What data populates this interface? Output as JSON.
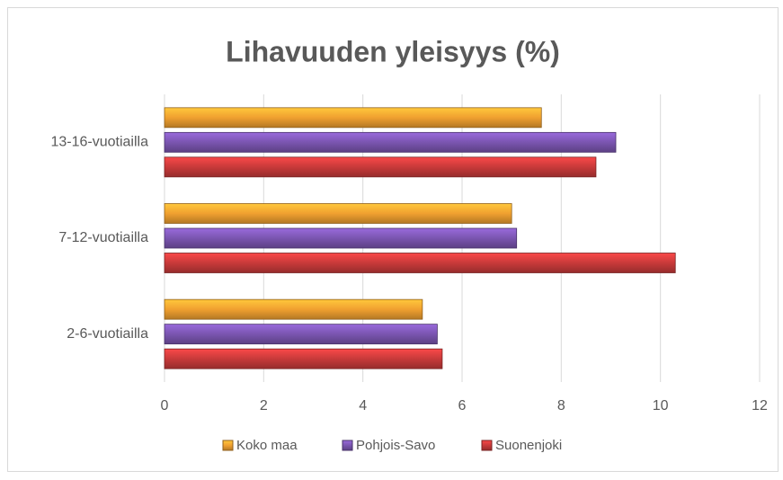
{
  "chart_data": {
    "type": "bar",
    "orientation": "horizontal",
    "title": "Lihavuuden yleisyys (%)",
    "categories": [
      "2-6-vuotiailla",
      "7-12-vuotiailla",
      "13-16-vuotiailla"
    ],
    "series": [
      {
        "name": "Koko maa",
        "color": "#f0a030",
        "values": [
          5.2,
          7.0,
          7.6
        ]
      },
      {
        "name": "Pohjois-Savo",
        "color": "#7a55b0",
        "values": [
          5.5,
          7.1,
          9.1
        ]
      },
      {
        "name": "Suonenjoki",
        "color": "#c83a3a",
        "values": [
          5.6,
          10.3,
          8.7
        ]
      }
    ],
    "xlim": [
      0,
      12
    ],
    "xticks": [
      0,
      2,
      4,
      6,
      8,
      10,
      12
    ],
    "grid": true,
    "legend": "bottom"
  }
}
